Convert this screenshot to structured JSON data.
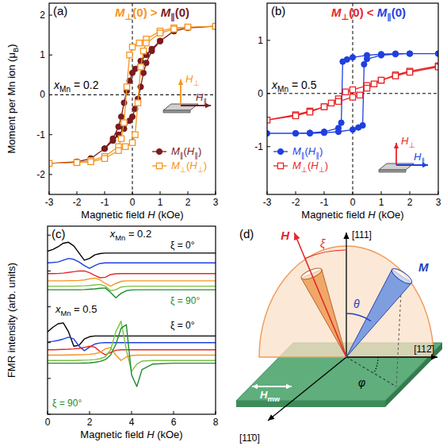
{
  "chart_data": [
    {
      "type": "line",
      "panel": "(a)",
      "x_label": "Magnetic field H (kOe)",
      "y_label": "Moment per Mn ion (μB)",
      "xlim": [
        -3,
        3
      ],
      "xticks": [
        -3,
        -2,
        -1,
        0,
        1,
        2,
        3
      ],
      "ylim": [
        -2.5,
        2.3
      ],
      "yticks": [
        -2,
        -1,
        0,
        1,
        2
      ],
      "grid": false,
      "legend": "bottom-right",
      "reference_lines": [
        {
          "axis": "x",
          "value": 0
        },
        {
          "axis": "y",
          "value": 0
        }
      ],
      "series": [
        {
          "name": "M∥(H∥)",
          "color": "#7a1c1c",
          "marker": "circle",
          "line_style": "solid",
          "x": [
            3,
            2,
            1.5,
            1,
            0.7,
            0.5,
            0.3,
            0.1,
            0,
            -0.1,
            -0.2,
            -0.3,
            -0.4,
            -0.5,
            -0.7,
            -1,
            -1.5,
            -2,
            -3,
            -2,
            -1.5,
            -1,
            -0.7,
            -0.5,
            -0.3,
            -0.1,
            0,
            0.1,
            0.2,
            0.3,
            0.4,
            0.5,
            0.7,
            1,
            1.5,
            2,
            3
          ],
          "values": [
            1.72,
            1.68,
            1.6,
            1.35,
            1.15,
            1.0,
            0.85,
            0.65,
            0.55,
            0.35,
            0.1,
            -0.2,
            -0.55,
            -0.8,
            -1.1,
            -1.35,
            -1.6,
            -1.68,
            -1.72,
            -1.68,
            -1.6,
            -1.35,
            -1.15,
            -1.0,
            -0.85,
            -0.65,
            -0.55,
            -0.35,
            -0.1,
            0.2,
            0.55,
            0.8,
            1.1,
            1.35,
            1.6,
            1.68,
            1.72
          ]
        },
        {
          "name": "M⊥(H⊥)",
          "color": "#f7941d",
          "marker": "open-square",
          "line_style": "solid",
          "x": [
            3,
            2,
            1.5,
            1,
            0.5,
            0.25,
            0,
            -0.1,
            -0.2,
            -0.3,
            -0.4,
            -0.5,
            -1,
            -1.5,
            -2,
            -3,
            -2,
            -1.5,
            -1,
            -0.5,
            -0.25,
            0,
            0.1,
            0.2,
            0.3,
            0.4,
            0.5,
            1,
            1.5,
            2,
            3
          ],
          "values": [
            1.72,
            1.7,
            1.68,
            1.6,
            1.4,
            1.3,
            1.2,
            1.0,
            0.2,
            -0.7,
            -1.1,
            -1.3,
            -1.55,
            -1.65,
            -1.7,
            -1.72,
            -1.7,
            -1.68,
            -1.6,
            -1.4,
            -1.3,
            -1.2,
            -1.0,
            -0.2,
            0.7,
            1.1,
            1.3,
            1.55,
            1.65,
            1.7,
            1.72
          ]
        }
      ],
      "annotations": [
        {
          "parts": [
            {
              "text": "M⊥(0) > ",
              "color": "#f7941d"
            },
            {
              "text": "M∥(0)",
              "color": "#7a1c1c"
            }
          ]
        },
        {
          "text": "xMn = 0.2",
          "color": "#000000"
        },
        {
          "text": "H⊥",
          "color": "#f7941d"
        },
        {
          "text": "H∥",
          "color": "#7a1c1c"
        }
      ]
    },
    {
      "type": "line",
      "panel": "(b)",
      "x_label": "Magnetic field H (kOe)",
      "xlim": [
        -3,
        3
      ],
      "xticks": [
        -3,
        -2,
        -1,
        0,
        1,
        2,
        3
      ],
      "ylim": [
        -1.9,
        1.7
      ],
      "yticks": [
        -1,
        0,
        1
      ],
      "grid": false,
      "legend": "bottom-left",
      "reference_lines": [
        {
          "axis": "x",
          "value": 0
        },
        {
          "axis": "y",
          "value": 0
        }
      ],
      "series": [
        {
          "name": "M∥(H∥)",
          "color": "#1f3fe0",
          "marker": "circle",
          "line_style": "solid",
          "x": [
            3,
            2,
            1.5,
            1,
            0.5,
            0,
            -0.2,
            -0.35,
            -0.4,
            -0.5,
            -1,
            -1.5,
            -2,
            -3,
            -2,
            -1.5,
            -1,
            -0.5,
            0,
            0.2,
            0.35,
            0.4,
            0.5,
            1,
            1.5,
            2,
            3
          ],
          "values": [
            0.75,
            0.75,
            0.75,
            0.74,
            0.72,
            0.68,
            0.64,
            0.6,
            -0.55,
            -0.65,
            -0.72,
            -0.74,
            -0.75,
            -0.75,
            -0.75,
            -0.75,
            -0.74,
            -0.72,
            -0.68,
            -0.64,
            -0.6,
            0.55,
            0.65,
            0.72,
            0.74,
            0.75,
            0.75
          ]
        },
        {
          "name": "M⊥(H⊥)",
          "color": "#e8262a",
          "marker": "open-square",
          "line_style": "solid",
          "x": [
            3,
            2,
            1.5,
            1,
            0.5,
            0,
            -0.25,
            -0.5,
            -0.75,
            -1,
            -1.5,
            -2,
            -3,
            -2,
            -1.5,
            -1,
            -0.5,
            0,
            0.25,
            0.5,
            0.75,
            1,
            1.5,
            2,
            3
          ],
          "values": [
            0.52,
            0.42,
            0.35,
            0.25,
            0.15,
            0.07,
            0.03,
            -0.1,
            -0.18,
            -0.25,
            -0.33,
            -0.4,
            -0.5,
            -0.42,
            -0.35,
            -0.25,
            -0.15,
            -0.07,
            -0.03,
            0.1,
            0.18,
            0.25,
            0.33,
            0.4,
            0.5
          ]
        }
      ],
      "annotations": [
        {
          "parts": [
            {
              "text": "M⊥(0) < ",
              "color": "#e8262a"
            },
            {
              "text": "M∥(0)",
              "color": "#1f3fe0"
            }
          ]
        },
        {
          "text": "xMn = 0.5",
          "color": "#000000"
        },
        {
          "text": "H⊥",
          "color": "#e8262a"
        },
        {
          "text": "H∥",
          "color": "#1f3fe0"
        }
      ]
    },
    {
      "type": "line",
      "panel": "(c)",
      "x_label": "Magnetic field H (kOe)",
      "y_label": "FMR intensity (arb. units)",
      "xlim": [
        0,
        8
      ],
      "xticks": [
        0,
        2,
        4,
        6,
        8
      ],
      "ylim": [
        0,
        10.5
      ],
      "yticks": [
        0,
        2,
        4,
        6,
        8,
        10
      ],
      "grid": false,
      "tick_labels": "x",
      "x": [
        0,
        0.25,
        0.5,
        0.75,
        1,
        1.25,
        1.5,
        1.75,
        2,
        2.25,
        2.5,
        2.75,
        3,
        3.25,
        3.5,
        3.75,
        4,
        4.25,
        4.5,
        5,
        6,
        7,
        8
      ],
      "series": [
        {
          "color": "#000000",
          "line_style": "solid",
          "values": [
            9.1,
            9.2,
            9.35,
            9.55,
            9.6,
            9.4,
            9.0,
            8.6,
            8.7,
            8.9,
            8.97,
            9,
            9,
            9,
            9,
            9,
            9,
            9,
            9,
            9,
            9,
            9,
            9
          ]
        },
        {
          "color": "#1f3fe0",
          "line_style": "solid",
          "values": [
            8.45,
            8.47,
            8.5,
            8.6,
            8.7,
            8.65,
            8.5,
            8.3,
            8.15,
            8.3,
            8.42,
            8.45,
            8.45,
            8.45,
            8.45,
            8.45,
            8.45,
            8.45,
            8.45,
            8.45,
            8.45,
            8.45,
            8.45
          ]
        },
        {
          "color": "#e8262a",
          "line_style": "solid",
          "values": [
            7.85,
            7.85,
            7.86,
            7.88,
            7.92,
            7.96,
            8,
            8,
            7.9,
            7.75,
            7.62,
            7.65,
            7.8,
            7.84,
            7.85,
            7.85,
            7.85,
            7.85,
            7.85,
            7.85,
            7.85,
            7.85,
            7.85
          ]
        },
        {
          "color": "#f7941d",
          "line_style": "solid",
          "values": [
            7.45,
            7.45,
            7.45,
            7.45,
            7.46,
            7.46,
            7.47,
            7.5,
            7.56,
            7.6,
            7.5,
            7.3,
            7.15,
            7.3,
            7.42,
            7.45,
            7.45,
            7.45,
            7.45,
            7.45,
            7.45,
            7.45,
            7.45
          ]
        },
        {
          "color": "#7cc242",
          "line_style": "solid",
          "values": [
            7.15,
            7.15,
            7.15,
            7.15,
            7.15,
            7.15,
            7.16,
            7.17,
            7.19,
            7.22,
            7.25,
            7.15,
            6.9,
            6.95,
            7.1,
            7.14,
            7.15,
            7.15,
            7.15,
            7.15,
            7.15,
            7.15,
            7.15
          ]
        },
        {
          "color": "#1e8c2e",
          "line_style": "solid",
          "values": [
            6.95,
            6.95,
            6.95,
            6.95,
            6.95,
            6.95,
            6.95,
            6.96,
            6.98,
            7,
            7.03,
            7.05,
            6.8,
            6.5,
            6.75,
            6.9,
            6.94,
            6.95,
            6.95,
            6.95,
            6.95,
            6.95,
            6.95
          ]
        },
        {
          "color": "#000000",
          "line_style": "solid",
          "values": [
            4.6,
            4.85,
            5.05,
            5.1,
            4.6,
            3.8,
            3.85,
            4.2,
            4.33,
            4.37,
            4.37,
            4.37,
            4.37,
            4.37,
            4.37,
            4.37,
            4.37,
            4.37,
            4.37,
            4.37,
            4.37,
            4.37,
            4.37
          ]
        },
        {
          "color": "#1f3fe0",
          "line_style": "solid",
          "values": [
            4.03,
            4.07,
            4.12,
            4.2,
            4.3,
            4.2,
            3.8,
            3.55,
            3.75,
            3.92,
            3.98,
            4,
            4,
            4,
            4,
            4,
            4,
            4,
            4,
            4,
            4,
            4,
            4
          ]
        },
        {
          "color": "#e8262a",
          "line_style": "solid",
          "values": [
            3.6,
            3.6,
            3.61,
            3.62,
            3.63,
            3.65,
            3.68,
            3.73,
            3.8,
            3.75,
            3.5,
            3.32,
            3.45,
            3.57,
            3.6,
            3.6,
            3.6,
            3.6,
            3.6,
            3.6,
            3.6,
            3.6,
            3.6
          ]
        },
        {
          "color": "#f7941d",
          "line_style": "solid",
          "values": [
            3.3,
            3.3,
            3.3,
            3.3,
            3.31,
            3.31,
            3.32,
            3.33,
            3.35,
            3.38,
            3.45,
            3.65,
            3.72,
            3.3,
            3,
            3.2,
            3.28,
            3.3,
            3.3,
            3.3,
            3.3,
            3.3,
            3.3
          ]
        },
        {
          "color": "#7cc242",
          "line_style": "solid",
          "values": [
            3,
            3,
            3,
            3,
            3,
            3,
            3.01,
            3.02,
            3.03,
            3.05,
            3.1,
            3.2,
            3.6,
            4.6,
            5.2,
            3.6,
            2.4,
            2.8,
            2.97,
            3,
            3,
            3,
            3
          ]
        },
        {
          "color": "#1e8c2e",
          "line_style": "solid",
          "values": [
            2.85,
            2.85,
            2.85,
            2.85,
            2.85,
            2.85,
            2.85,
            2.86,
            2.87,
            2.9,
            2.95,
            3.05,
            3.3,
            3.9,
            4.8,
            5,
            2.2,
            1.55,
            2.5,
            2.8,
            2.85,
            2.85,
            2.85
          ]
        }
      ],
      "annotations": [
        {
          "text": "xMn = 0.2",
          "color": "#000000"
        },
        {
          "text": "ξ = 0°",
          "color": "#000000"
        },
        {
          "text": "ξ = 90°",
          "color": "#1e8c2e"
        },
        {
          "text": "xMn = 0.5",
          "color": "#000000"
        },
        {
          "text": "ξ = 0°",
          "color": "#000000"
        },
        {
          "text": "ξ = 90°",
          "color": "#1e8c2e"
        }
      ]
    }
  ],
  "diagram": {
    "panel": "(d)",
    "labels": {
      "axis_111": "[111]",
      "axis_112": "[112̄]",
      "axis_110": "[11̄0]",
      "field": "H",
      "field_angle": "ξ",
      "magnetization": "M",
      "polar_angle": "θ",
      "azimuth": "φ",
      "microwave_field": "Hmw"
    }
  }
}
